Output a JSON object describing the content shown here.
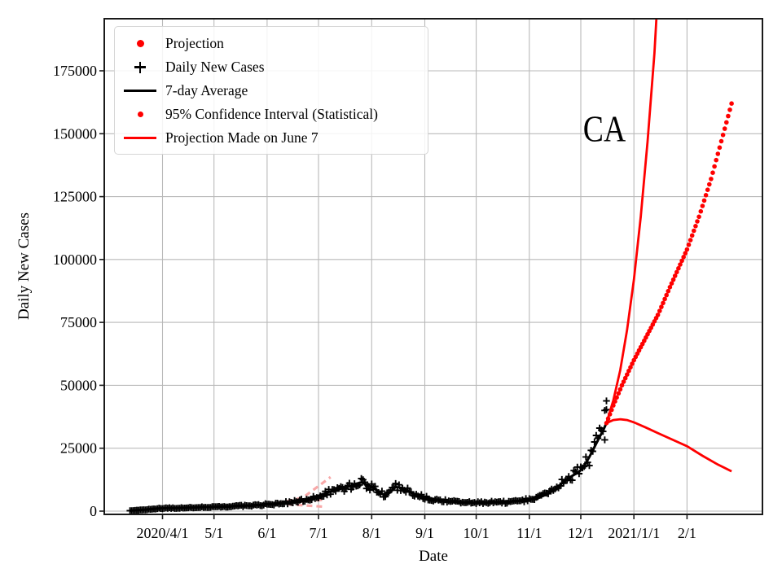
{
  "figure": {
    "background": "#ffffff"
  },
  "chart_data": {
    "type": "line+scatter",
    "title": "",
    "annotation": {
      "text": "CA",
      "x": "2020-12-15",
      "y": 152000
    },
    "colors": {
      "red": "#ff0000",
      "black": "#000000",
      "grid": "#b9b9b9",
      "june7_pink": "#f8a8a8",
      "legend_border": "#d5d5d5",
      "background": "#ffffff"
    },
    "grid": true,
    "x_axis": {
      "label": "Date",
      "min": "2020-02-27",
      "max": "2021-03-17",
      "ticks": [
        {
          "date": "2020-04-01",
          "label": "2020/4/1"
        },
        {
          "date": "2020-05-01",
          "label": "5/1"
        },
        {
          "date": "2020-06-01",
          "label": "6/1"
        },
        {
          "date": "2020-07-01",
          "label": "7/1"
        },
        {
          "date": "2020-08-01",
          "label": "8/1"
        },
        {
          "date": "2020-09-01",
          "label": "9/1"
        },
        {
          "date": "2020-10-01",
          "label": "10/1"
        },
        {
          "date": "2020-11-01",
          "label": "11/1"
        },
        {
          "date": "2020-12-01",
          "label": "12/1"
        },
        {
          "date": "2021-01-01",
          "label": "2021/1/1"
        },
        {
          "date": "2021-02-01",
          "label": "2/1"
        }
      ]
    },
    "y_axis": {
      "label": "Daily New Cases",
      "min": -1300,
      "max": 195700,
      "ticks": [
        {
          "value": 0,
          "label": "0"
        },
        {
          "value": 25000,
          "label": "25000"
        },
        {
          "value": 50000,
          "label": "50000"
        },
        {
          "value": 75000,
          "label": "75000"
        },
        {
          "value": 100000,
          "label": "100000"
        },
        {
          "value": 125000,
          "label": "125000"
        },
        {
          "value": 150000,
          "label": "150000"
        },
        {
          "value": 175000,
          "label": "175000"
        }
      ]
    },
    "legend": {
      "position": "upper left",
      "items": [
        {
          "marker": "dot-large",
          "color": "#ff0000",
          "label": "Projection"
        },
        {
          "marker": "plus",
          "color": "#000000",
          "label": "Daily New Cases"
        },
        {
          "marker": "line",
          "color": "#000000",
          "label": "7-day Average"
        },
        {
          "marker": "dot-small",
          "color": "#ff0000",
          "label": "95% Confidence Interval (Statistical)"
        },
        {
          "marker": "line",
          "color": "#ff0000",
          "label": "Projection Made on June 7"
        }
      ]
    },
    "series": {
      "seven_day_average": {
        "name": "7-day Average",
        "type": "line",
        "color": "#000000",
        "points": [
          [
            "2020-03-13",
            150
          ],
          [
            "2020-03-17",
            350
          ],
          [
            "2020-03-21",
            550
          ],
          [
            "2020-03-25",
            800
          ],
          [
            "2020-03-29",
            1000
          ],
          [
            "2020-04-02",
            1150
          ],
          [
            "2020-04-06",
            1200
          ],
          [
            "2020-04-10",
            1250
          ],
          [
            "2020-04-14",
            1320
          ],
          [
            "2020-04-18",
            1420
          ],
          [
            "2020-04-22",
            1520
          ],
          [
            "2020-04-26",
            1600
          ],
          [
            "2020-04-30",
            1700
          ],
          [
            "2020-05-04",
            1800
          ],
          [
            "2020-05-08",
            1900
          ],
          [
            "2020-05-12",
            1980
          ],
          [
            "2020-05-16",
            2060
          ],
          [
            "2020-05-20",
            2160
          ],
          [
            "2020-05-24",
            2280
          ],
          [
            "2020-05-28",
            2480
          ],
          [
            "2020-06-01",
            2700
          ],
          [
            "2020-06-05",
            2900
          ],
          [
            "2020-06-09",
            3100
          ],
          [
            "2020-06-13",
            3320
          ],
          [
            "2020-06-17",
            3700
          ],
          [
            "2020-06-21",
            4200
          ],
          [
            "2020-06-25",
            4850
          ],
          [
            "2020-06-29",
            5600
          ],
          [
            "2020-07-03",
            6600
          ],
          [
            "2020-07-07",
            7600
          ],
          [
            "2020-07-11",
            8400
          ],
          [
            "2020-07-15",
            9100
          ],
          [
            "2020-07-19",
            9900
          ],
          [
            "2020-07-23",
            10900
          ],
          [
            "2020-07-26",
            11400
          ],
          [
            "2020-07-29",
            10600
          ],
          [
            "2020-08-02",
            9200
          ],
          [
            "2020-08-06",
            7200
          ],
          [
            "2020-08-09",
            6200
          ],
          [
            "2020-08-12",
            7600
          ],
          [
            "2020-08-15",
            9600
          ],
          [
            "2020-08-18",
            9300
          ],
          [
            "2020-08-22",
            8000
          ],
          [
            "2020-08-26",
            6800
          ],
          [
            "2020-08-30",
            5800
          ],
          [
            "2020-09-03",
            5100
          ],
          [
            "2020-09-07",
            4600
          ],
          [
            "2020-09-11",
            4200
          ],
          [
            "2020-09-15",
            3850
          ],
          [
            "2020-09-19",
            3650
          ],
          [
            "2020-09-23",
            3500
          ],
          [
            "2020-09-27",
            3350
          ],
          [
            "2020-10-01",
            3250
          ],
          [
            "2020-10-05",
            3300
          ],
          [
            "2020-10-09",
            3380
          ],
          [
            "2020-10-13",
            3480
          ],
          [
            "2020-10-17",
            3580
          ],
          [
            "2020-10-21",
            3750
          ],
          [
            "2020-10-25",
            3950
          ],
          [
            "2020-10-29",
            4250
          ],
          [
            "2020-11-02",
            4700
          ],
          [
            "2020-11-06",
            5300
          ],
          [
            "2020-11-10",
            6300
          ],
          [
            "2020-11-14",
            7800
          ],
          [
            "2020-11-18",
            9800
          ],
          [
            "2020-11-22",
            12200
          ],
          [
            "2020-11-26",
            14000
          ],
          [
            "2020-11-30",
            15600
          ],
          [
            "2020-12-03",
            18000
          ],
          [
            "2020-12-06",
            21500
          ],
          [
            "2020-12-09",
            25500
          ],
          [
            "2020-12-12",
            29500
          ],
          [
            "2020-12-14",
            32000
          ],
          [
            "2020-12-16",
            35000
          ]
        ]
      },
      "daily_new_cases": {
        "name": "Daily New Cases",
        "type": "scatter-plus",
        "color": "#000000",
        "follows": "seven_day_average",
        "start": "2020-03-13",
        "end": "2020-12-16",
        "noise_fraction": 0.16,
        "seed": 77,
        "extra_points": [
          [
            "2020-12-15",
            40000
          ],
          [
            "2020-12-16",
            43800
          ]
        ]
      },
      "projection": {
        "name": "Projection",
        "type": "scatter-dots",
        "color": "#ff0000",
        "interval_days": 1,
        "points": [
          [
            "2020-12-16",
            35000
          ],
          [
            "2020-12-20",
            42000
          ],
          [
            "2020-12-25",
            50000
          ],
          [
            "2021-01-01",
            60000
          ],
          [
            "2021-01-08",
            69000
          ],
          [
            "2021-01-15",
            78000
          ],
          [
            "2021-01-22",
            89000
          ],
          [
            "2021-02-01",
            104000
          ],
          [
            "2021-02-08",
            117000
          ],
          [
            "2021-02-15",
            132000
          ],
          [
            "2021-02-21",
            147000
          ],
          [
            "2021-02-27",
            162000
          ]
        ]
      },
      "ci_upper": {
        "name": "95% Confidence Interval (Statistical) upper",
        "type": "line",
        "color": "#ff0000",
        "points": [
          [
            "2020-12-16",
            35000
          ],
          [
            "2020-12-20",
            44000
          ],
          [
            "2020-12-24",
            56000
          ],
          [
            "2020-12-28",
            72000
          ],
          [
            "2021-01-01",
            92000
          ],
          [
            "2021-01-05",
            117000
          ],
          [
            "2021-01-09",
            147000
          ],
          [
            "2021-01-13",
            182000
          ],
          [
            "2021-01-15",
            206000
          ]
        ]
      },
      "ci_lower": {
        "name": "95% Confidence Interval (Statistical) lower",
        "type": "line",
        "color": "#ff0000",
        "points": [
          [
            "2020-12-16",
            35000
          ],
          [
            "2020-12-20",
            36200
          ],
          [
            "2020-12-24",
            36500
          ],
          [
            "2020-12-28",
            36200
          ],
          [
            "2021-01-01",
            35300
          ],
          [
            "2021-01-08",
            33200
          ],
          [
            "2021-01-15",
            31000
          ],
          [
            "2021-02-01",
            25800
          ],
          [
            "2021-02-10",
            22000
          ],
          [
            "2021-02-19",
            18500
          ],
          [
            "2021-02-27",
            15800
          ]
        ]
      },
      "projection_june7": {
        "name": "Projection Made on June 7",
        "type": "dashed-lines",
        "color": "#f8a8a8",
        "branches": [
          [
            [
              "2020-06-07",
              3000
            ],
            [
              "2020-06-22",
              5400
            ],
            [
              "2020-07-08",
              13500
            ]
          ],
          [
            [
              "2020-06-07",
              3000
            ],
            [
              "2020-07-05",
              4600
            ]
          ],
          [
            [
              "2020-06-07",
              3000
            ],
            [
              "2020-07-05",
              1700
            ]
          ]
        ]
      }
    }
  }
}
